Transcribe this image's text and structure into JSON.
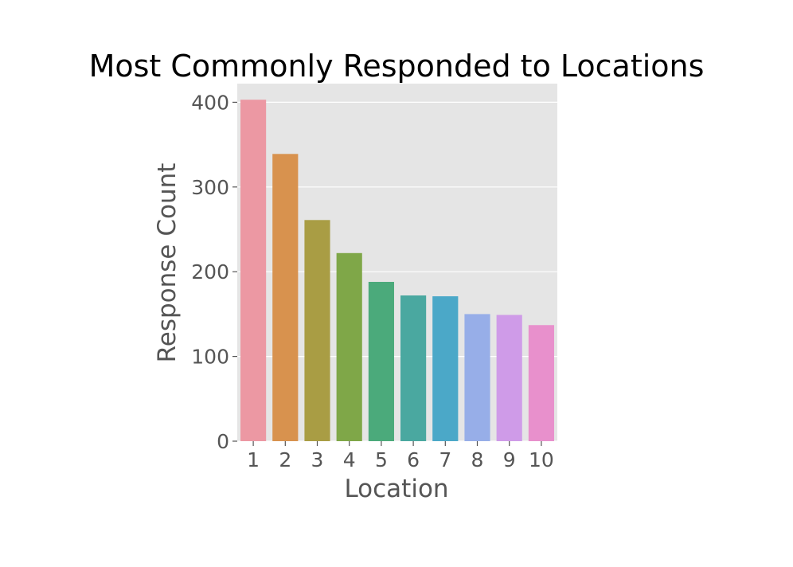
{
  "chart_data": {
    "type": "bar",
    "title": "Most Commonly Responded to Locations",
    "xlabel": "Location",
    "ylabel": "Response Count",
    "categories": [
      "1",
      "2",
      "3",
      "4",
      "5",
      "6",
      "7",
      "8",
      "9",
      "10"
    ],
    "values": [
      403,
      339,
      261,
      222,
      188,
      172,
      171,
      150,
      149,
      137
    ],
    "ylim": [
      0,
      422
    ],
    "yticks": [
      "0",
      "100",
      "200",
      "300",
      "400"
    ],
    "grid": true,
    "colors": {
      "plot_background": "#e5e5e5",
      "grid": "#ffffff",
      "bars": [
        "#ec98a3",
        "#d8924e",
        "#a99d44",
        "#7fa748",
        "#4baa7b",
        "#4aa8a0",
        "#4ba8c8",
        "#97aee8",
        "#cf9be8",
        "#e890cc"
      ]
    }
  }
}
